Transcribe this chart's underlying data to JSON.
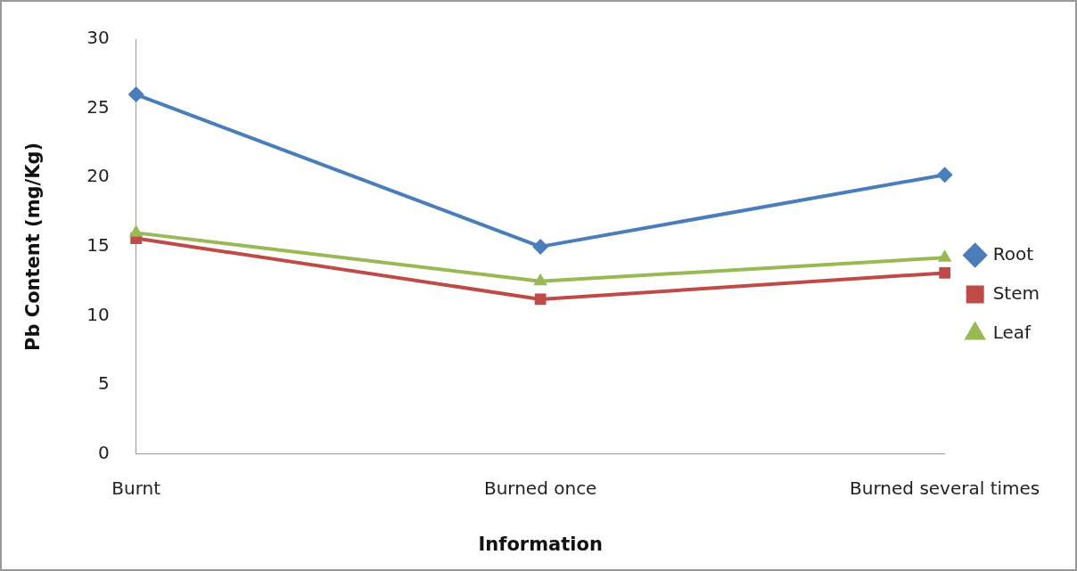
{
  "chart_data": {
    "type": "line",
    "xlabel": "Information",
    "ylabel": "Pb Content (mg/Kg)",
    "categories": [
      "Burnt",
      "Burned once",
      "Burned several times"
    ],
    "series": [
      {
        "name": "Root",
        "color": "#4a7ebb",
        "marker": "diamond",
        "values": [
          26,
          15,
          20.2
        ]
      },
      {
        "name": "Stem",
        "color": "#be4b48",
        "marker": "square",
        "values": [
          15.6,
          11.2,
          13.1
        ]
      },
      {
        "name": "Leaf",
        "color": "#98b954",
        "marker": "triangle",
        "values": [
          16,
          12.5,
          14.2
        ]
      }
    ],
    "ylim": [
      0,
      30
    ],
    "yticks": [
      0,
      5,
      10,
      15,
      20,
      25,
      30
    ],
    "grid": false,
    "legend": "right",
    "line_style": "solid"
  }
}
